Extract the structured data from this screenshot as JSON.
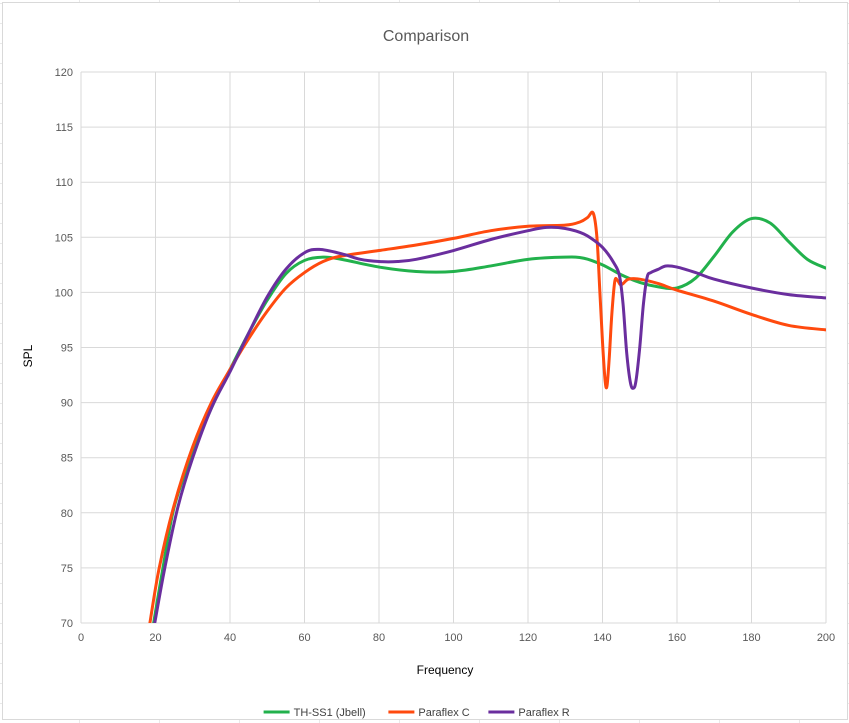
{
  "chart_data": {
    "type": "line",
    "title": "Comparison",
    "xlabel": "Frequency",
    "ylabel": "SPL",
    "xlim": [
      0,
      200
    ],
    "ylim": [
      70,
      120
    ],
    "x_ticks": [
      "0",
      "20",
      "40",
      "60",
      "80",
      "100",
      "120",
      "140",
      "160",
      "180",
      "200"
    ],
    "y_ticks": [
      "70",
      "75",
      "80",
      "85",
      "90",
      "95",
      "100",
      "105",
      "110",
      "115",
      "120"
    ],
    "grid": true,
    "legend_position": "bottom",
    "series": [
      {
        "name": "TH-SS1 (Jbell)",
        "color": "#22b14c",
        "points": [
          [
            19.5,
            70
          ],
          [
            22,
            75
          ],
          [
            25,
            80.5
          ],
          [
            30,
            85.5
          ],
          [
            35,
            89.5
          ],
          [
            40,
            93
          ],
          [
            45,
            96.3
          ],
          [
            50,
            99.3
          ],
          [
            55,
            101.7
          ],
          [
            60,
            102.9
          ],
          [
            65,
            103.2
          ],
          [
            70,
            103
          ],
          [
            80,
            102.3
          ],
          [
            90,
            101.9
          ],
          [
            100,
            101.9
          ],
          [
            110,
            102.4
          ],
          [
            120,
            103
          ],
          [
            130,
            103.2
          ],
          [
            135,
            103.1
          ],
          [
            140,
            102.5
          ],
          [
            145,
            101.6
          ],
          [
            150,
            100.9
          ],
          [
            155,
            100.5
          ],
          [
            160,
            100.4
          ],
          [
            165,
            101.3
          ],
          [
            170,
            103.3
          ],
          [
            175,
            105.5
          ],
          [
            180,
            106.7
          ],
          [
            185,
            106.3
          ],
          [
            190,
            104.6
          ],
          [
            195,
            103
          ],
          [
            200,
            102.2
          ]
        ]
      },
      {
        "name": "Paraflex C",
        "color": "#ff4a0e",
        "points": [
          [
            18.5,
            70
          ],
          [
            21,
            75
          ],
          [
            25,
            80.7
          ],
          [
            30,
            86
          ],
          [
            35,
            90
          ],
          [
            40,
            93
          ],
          [
            45,
            95.8
          ],
          [
            50,
            98.3
          ],
          [
            55,
            100.4
          ],
          [
            60,
            101.8
          ],
          [
            65,
            102.8
          ],
          [
            70,
            103.3
          ],
          [
            80,
            103.8
          ],
          [
            90,
            104.3
          ],
          [
            100,
            104.9
          ],
          [
            110,
            105.6
          ],
          [
            120,
            106
          ],
          [
            130,
            106.1
          ],
          [
            134,
            106.4
          ],
          [
            136,
            106.8
          ],
          [
            137.5,
            107.2
          ],
          [
            138.5,
            105
          ],
          [
            139.3,
            100
          ],
          [
            140,
            95.5
          ],
          [
            140.7,
            92
          ],
          [
            141.2,
            91.5
          ],
          [
            141.8,
            94
          ],
          [
            142.5,
            98
          ],
          [
            143.3,
            101
          ],
          [
            144,
            101.1
          ],
          [
            144.8,
            100.7
          ],
          [
            145.5,
            100.8
          ],
          [
            147,
            101.2
          ],
          [
            150,
            101.2
          ],
          [
            155,
            100.8
          ],
          [
            160,
            100.2
          ],
          [
            170,
            99.2
          ],
          [
            180,
            98
          ],
          [
            190,
            97
          ],
          [
            200,
            96.6
          ]
        ]
      },
      {
        "name": "Paraflex R",
        "color": "#6a2e9e",
        "points": [
          [
            19.8,
            70
          ],
          [
            22.5,
            75
          ],
          [
            26,
            80.5
          ],
          [
            30,
            85
          ],
          [
            35,
            89.5
          ],
          [
            40,
            92.8
          ],
          [
            45,
            96.3
          ],
          [
            50,
            99.6
          ],
          [
            55,
            102.1
          ],
          [
            60,
            103.6
          ],
          [
            64,
            103.9
          ],
          [
            70,
            103.5
          ],
          [
            75,
            103
          ],
          [
            80,
            102.8
          ],
          [
            85,
            102.8
          ],
          [
            90,
            103
          ],
          [
            100,
            103.8
          ],
          [
            110,
            104.8
          ],
          [
            120,
            105.6
          ],
          [
            125,
            105.9
          ],
          [
            130,
            105.8
          ],
          [
            135,
            105.3
          ],
          [
            139,
            104.4
          ],
          [
            141,
            103.7
          ],
          [
            143,
            102.7
          ],
          [
            144.5,
            101.6
          ],
          [
            145.5,
            99
          ],
          [
            146.5,
            94.5
          ],
          [
            147.5,
            91.8
          ],
          [
            148.3,
            91.3
          ],
          [
            149,
            92
          ],
          [
            150,
            95
          ],
          [
            151,
            99
          ],
          [
            152,
            101.4
          ],
          [
            153,
            101.8
          ],
          [
            155,
            102.1
          ],
          [
            157,
            102.4
          ],
          [
            160,
            102.3
          ],
          [
            165,
            101.8
          ],
          [
            170,
            101.2
          ],
          [
            180,
            100.4
          ],
          [
            190,
            99.8
          ],
          [
            200,
            99.5
          ]
        ]
      }
    ]
  }
}
